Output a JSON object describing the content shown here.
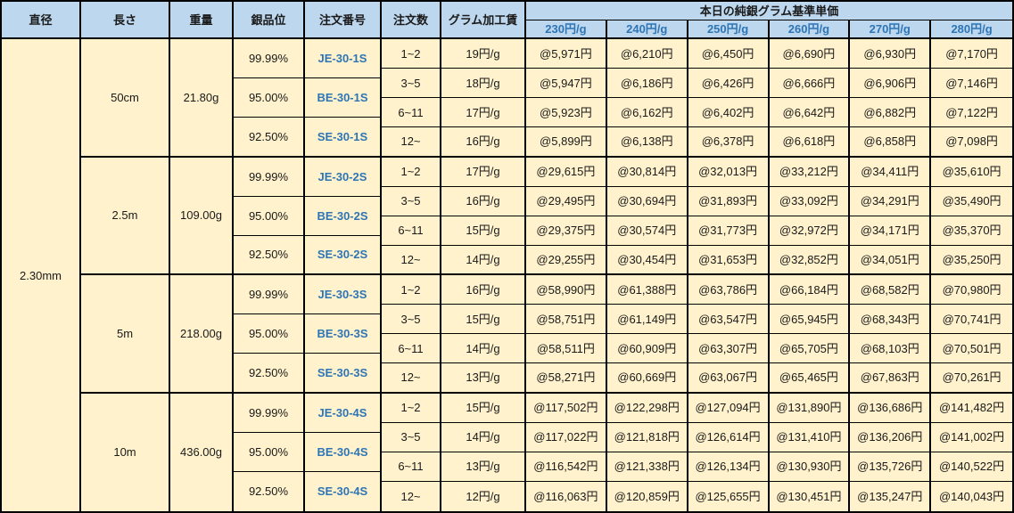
{
  "table": {
    "headers": {
      "diameter": "直径",
      "length": "長さ",
      "weight": "重量",
      "purity": "銀品位",
      "order_no": "注文番号",
      "order_qty": "注文数",
      "gram_fee": "グラム加工賃",
      "price_group": "本日の純銀グラム基準単価",
      "price_cols": [
        "230円/g",
        "240円/g",
        "250円/g",
        "260円/g",
        "270円/g",
        "280円/g"
      ]
    },
    "diameter": "2.30mm",
    "groups": [
      {
        "length": "50cm",
        "weight": "21.80g",
        "purities": [
          {
            "purity": "99.99%",
            "order_no": "JE-30-1S"
          },
          {
            "purity": "95.00%",
            "order_no": "BE-30-1S"
          },
          {
            "purity": "92.50%",
            "order_no": "SE-30-1S"
          }
        ],
        "rows": [
          {
            "qty": "1~2",
            "fee": "19円/g",
            "prices": [
              "@5,971円",
              "@6,210円",
              "@6,450円",
              "@6,690円",
              "@6,930円",
              "@7,170円"
            ]
          },
          {
            "qty": "3~5",
            "fee": "18円/g",
            "prices": [
              "@5,947円",
              "@6,186円",
              "@6,426円",
              "@6,666円",
              "@6,906円",
              "@7,146円"
            ]
          },
          {
            "qty": "6~11",
            "fee": "17円/g",
            "prices": [
              "@5,923円",
              "@6,162円",
              "@6,402円",
              "@6,642円",
              "@6,882円",
              "@7,122円"
            ]
          },
          {
            "qty": "12~",
            "fee": "16円/g",
            "prices": [
              "@5,899円",
              "@6,138円",
              "@6,378円",
              "@6,618円",
              "@6,858円",
              "@7,098円"
            ]
          }
        ]
      },
      {
        "length": "2.5m",
        "weight": "109.00g",
        "purities": [
          {
            "purity": "99.99%",
            "order_no": "JE-30-2S"
          },
          {
            "purity": "95.00%",
            "order_no": "BE-30-2S"
          },
          {
            "purity": "92.50%",
            "order_no": "SE-30-2S"
          }
        ],
        "rows": [
          {
            "qty": "1~2",
            "fee": "17円/g",
            "prices": [
              "@29,615円",
              "@30,814円",
              "@32,013円",
              "@33,212円",
              "@34,411円",
              "@35,610円"
            ]
          },
          {
            "qty": "3~5",
            "fee": "16円/g",
            "prices": [
              "@29,495円",
              "@30,694円",
              "@31,893円",
              "@33,092円",
              "@34,291円",
              "@35,490円"
            ]
          },
          {
            "qty": "6~11",
            "fee": "15円/g",
            "prices": [
              "@29,375円",
              "@30,574円",
              "@31,773円",
              "@32,972円",
              "@34,171円",
              "@35,370円"
            ]
          },
          {
            "qty": "12~",
            "fee": "14円/g",
            "prices": [
              "@29,255円",
              "@30,454円",
              "@31,653円",
              "@32,852円",
              "@34,051円",
              "@35,250円"
            ]
          }
        ]
      },
      {
        "length": "5m",
        "weight": "218.00g",
        "purities": [
          {
            "purity": "99.99%",
            "order_no": "JE-30-3S"
          },
          {
            "purity": "95.00%",
            "order_no": "BE-30-3S"
          },
          {
            "purity": "92.50%",
            "order_no": "SE-30-3S"
          }
        ],
        "rows": [
          {
            "qty": "1~2",
            "fee": "16円/g",
            "prices": [
              "@58,990円",
              "@61,388円",
              "@63,786円",
              "@66,184円",
              "@68,582円",
              "@70,980円"
            ]
          },
          {
            "qty": "3~5",
            "fee": "15円/g",
            "prices": [
              "@58,751円",
              "@61,149円",
              "@63,547円",
              "@65,945円",
              "@68,343円",
              "@70,741円"
            ]
          },
          {
            "qty": "6~11",
            "fee": "14円/g",
            "prices": [
              "@58,511円",
              "@60,909円",
              "@63,307円",
              "@65,705円",
              "@68,103円",
              "@70,501円"
            ]
          },
          {
            "qty": "12~",
            "fee": "13円/g",
            "prices": [
              "@58,271円",
              "@60,669円",
              "@63,067円",
              "@65,465円",
              "@67,863円",
              "@70,261円"
            ]
          }
        ]
      },
      {
        "length": "10m",
        "weight": "436.00g",
        "purities": [
          {
            "purity": "99.99%",
            "order_no": "JE-30-4S"
          },
          {
            "purity": "95.00%",
            "order_no": "BE-30-4S"
          },
          {
            "purity": "92.50%",
            "order_no": "SE-30-4S"
          }
        ],
        "rows": [
          {
            "qty": "1~2",
            "fee": "15円/g",
            "prices": [
              "@117,502円",
              "@122,298円",
              "@127,094円",
              "@131,890円",
              "@136,686円",
              "@141,482円"
            ]
          },
          {
            "qty": "3~5",
            "fee": "14円/g",
            "prices": [
              "@117,022円",
              "@121,818円",
              "@126,614円",
              "@131,410円",
              "@136,206円",
              "@141,002円"
            ]
          },
          {
            "qty": "6~11",
            "fee": "13円/g",
            "prices": [
              "@116,542円",
              "@121,338円",
              "@126,134円",
              "@130,930円",
              "@135,726円",
              "@140,522円"
            ]
          },
          {
            "qty": "12~",
            "fee": "12円/g",
            "prices": [
              "@116,063円",
              "@120,859円",
              "@125,655円",
              "@130,451円",
              "@135,247円",
              "@140,043円"
            ]
          }
        ]
      }
    ],
    "colors": {
      "header_bg": "#BDD7EE",
      "body_bg": "#FFF2CC",
      "accent_blue_text": "#2E75B6",
      "border": "#000000"
    }
  }
}
